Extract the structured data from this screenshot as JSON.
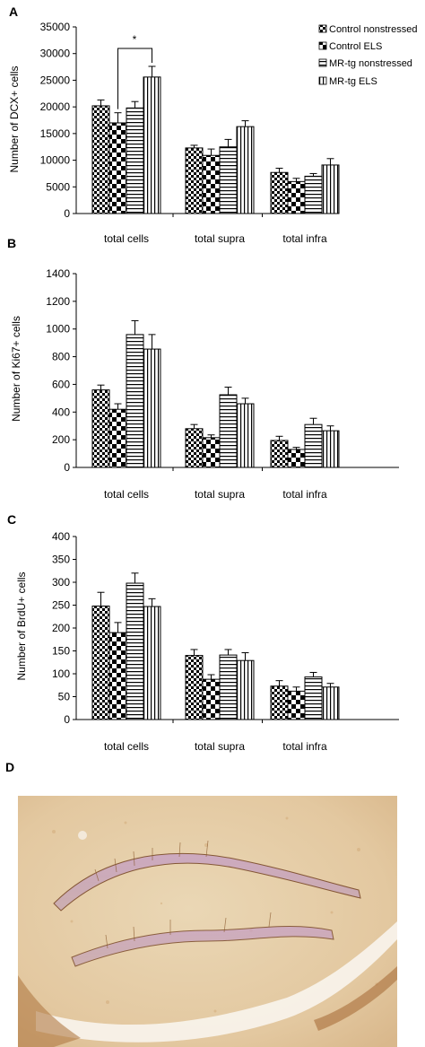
{
  "legend": [
    "Control nonstressed",
    "Control ELS",
    "MR-tg nonstressed",
    "MR-tg ELS"
  ],
  "chart_data": [
    {
      "type": "bar",
      "panel_label": "A",
      "ylabel": "Number of DCX+ cells",
      "categories": [
        "total cells",
        "total supra",
        "total infra"
      ],
      "ylim": [
        0,
        35000
      ],
      "yticks": [
        0,
        5000,
        10000,
        15000,
        20000,
        25000,
        30000,
        35000
      ],
      "series": [
        {
          "name": "Control nonstressed",
          "values": [
            20200,
            12300,
            7700
          ],
          "errors": [
            1100,
            500,
            800
          ]
        },
        {
          "name": "Control ELS",
          "values": [
            17000,
            10900,
            6000
          ],
          "errors": [
            1900,
            1200,
            600
          ]
        },
        {
          "name": "MR-tg nonstressed",
          "values": [
            19800,
            12500,
            7000
          ],
          "errors": [
            1200,
            1400,
            500
          ]
        },
        {
          "name": "MR-tg ELS",
          "values": [
            25600,
            16300,
            9100
          ],
          "errors": [
            2000,
            1100,
            1200
          ]
        }
      ],
      "significance": {
        "label": "*",
        "category": 0,
        "between": [
          1,
          3
        ]
      },
      "legend_position": "top-right"
    },
    {
      "type": "bar",
      "panel_label": "B",
      "ylabel": "Number of Ki67+ cells",
      "categories": [
        "total cells",
        "total supra",
        "total infra"
      ],
      "ylim": [
        0,
        1400
      ],
      "yticks": [
        0,
        200,
        400,
        600,
        800,
        1000,
        1200,
        1400
      ],
      "series": [
        {
          "name": "Control nonstressed",
          "values": [
            560,
            280,
            195
          ],
          "errors": [
            35,
            30,
            30
          ]
        },
        {
          "name": "Control ELS",
          "values": [
            420,
            215,
            130
          ],
          "errors": [
            40,
            20,
            15
          ]
        },
        {
          "name": "MR-tg nonstressed",
          "values": [
            960,
            525,
            310
          ],
          "errors": [
            100,
            55,
            45
          ]
        },
        {
          "name": "MR-tg ELS",
          "values": [
            855,
            460,
            265
          ],
          "errors": [
            105,
            40,
            35
          ]
        }
      ]
    },
    {
      "type": "bar",
      "panel_label": "C",
      "ylabel": "Number of  BrdU+ cells",
      "categories": [
        "total cells",
        "total supra",
        "total infra"
      ],
      "ylim": [
        0,
        400
      ],
      "yticks": [
        0,
        50,
        100,
        150,
        200,
        250,
        300,
        350,
        400
      ],
      "series": [
        {
          "name": "Control nonstressed",
          "values": [
            248,
            140,
            73
          ],
          "errors": [
            30,
            13,
            12
          ]
        },
        {
          "name": "Control ELS",
          "values": [
            190,
            88,
            62
          ],
          "errors": [
            22,
            10,
            9
          ]
        },
        {
          "name": "MR-tg nonstressed",
          "values": [
            298,
            141,
            93
          ],
          "errors": [
            22,
            12,
            10
          ]
        },
        {
          "name": "MR-tg ELS",
          "values": [
            247,
            129,
            71
          ],
          "errors": [
            17,
            17,
            8
          ]
        }
      ]
    }
  ],
  "micrograph": {
    "panel_label": "D"
  }
}
